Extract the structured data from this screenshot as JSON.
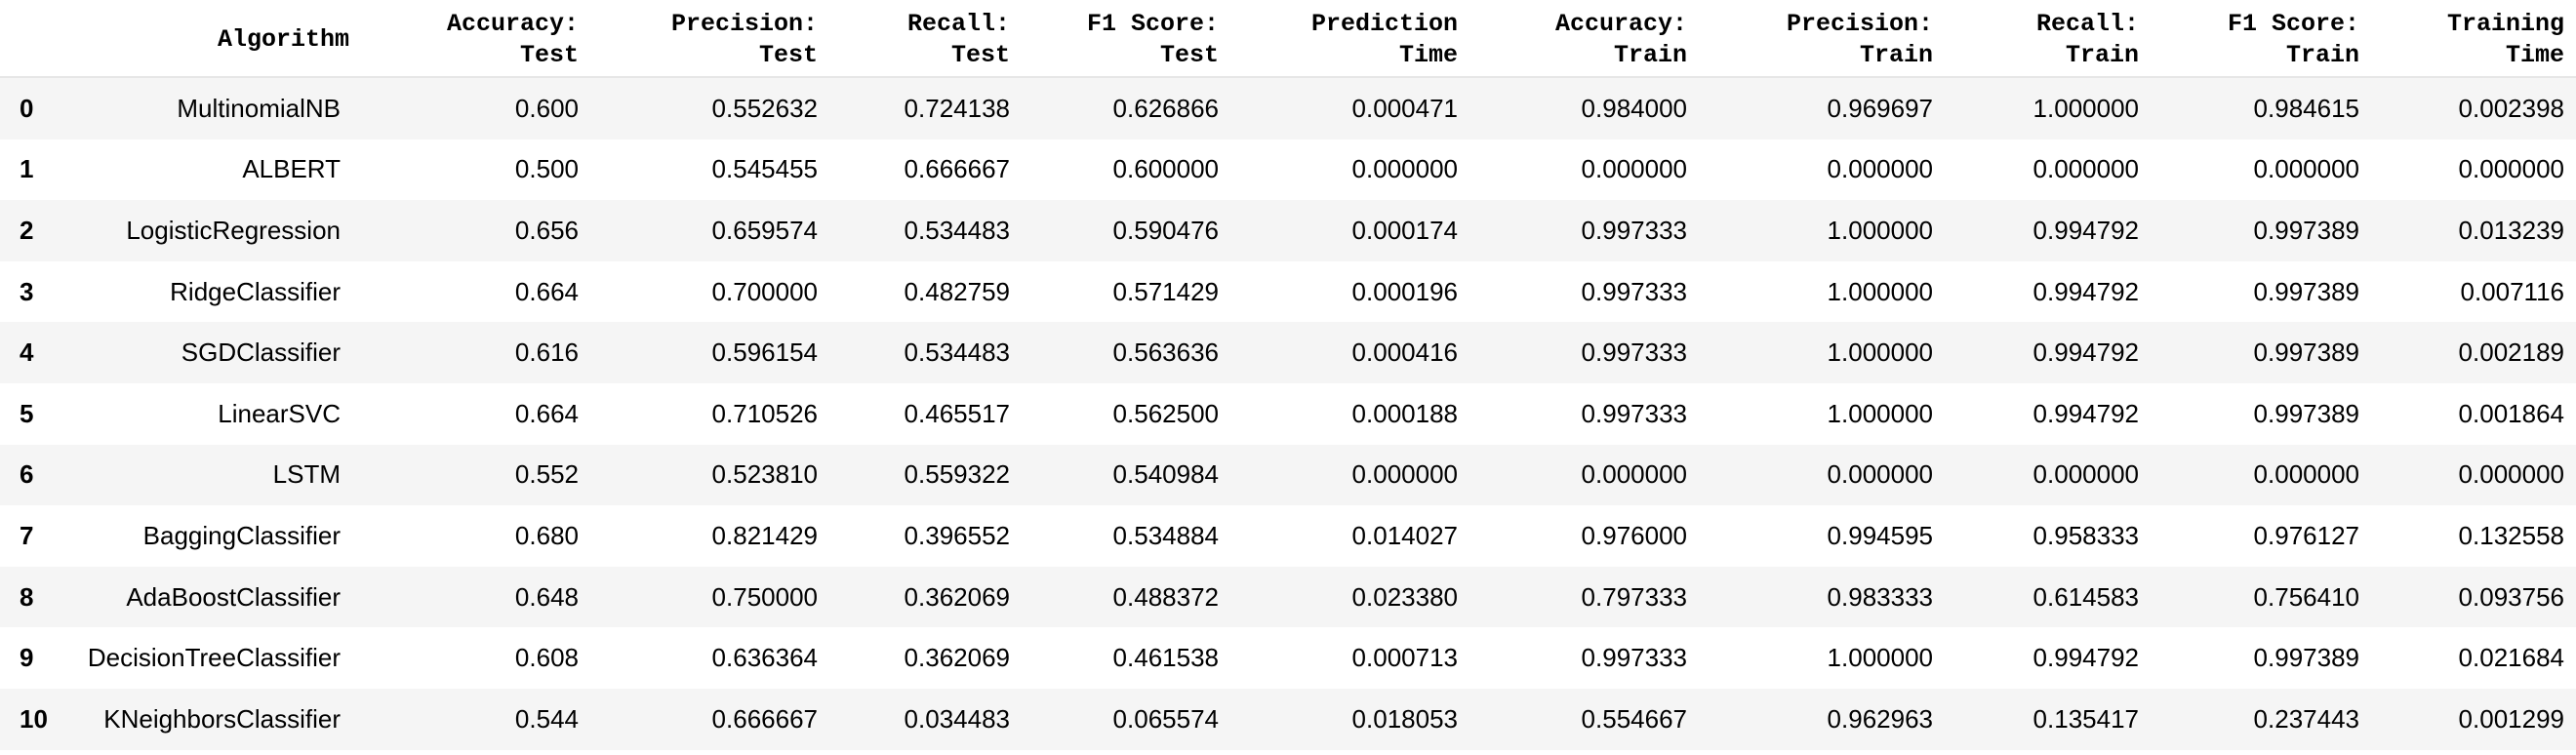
{
  "columns": [
    "",
    "Algorithm",
    "Accuracy:\nTest",
    "Precision:\nTest",
    "Recall:\nTest",
    "F1 Score:\nTest",
    "Prediction\nTime",
    "Accuracy:\nTrain",
    "Precision:\nTrain",
    "Recall:\nTrain",
    "F1 Score:\nTrain",
    "Training\nTime"
  ],
  "rows": [
    [
      "0",
      "MultinomialNB",
      "0.600",
      "0.552632",
      "0.724138",
      "0.626866",
      "0.000471",
      "0.984000",
      "0.969697",
      "1.000000",
      "0.984615",
      "0.002398"
    ],
    [
      "1",
      "ALBERT",
      "0.500",
      "0.545455",
      "0.666667",
      "0.600000",
      "0.000000",
      "0.000000",
      "0.000000",
      "0.000000",
      "0.000000",
      "0.000000"
    ],
    [
      "2",
      "LogisticRegression",
      "0.656",
      "0.659574",
      "0.534483",
      "0.590476",
      "0.000174",
      "0.997333",
      "1.000000",
      "0.994792",
      "0.997389",
      "0.013239"
    ],
    [
      "3",
      "RidgeClassifier",
      "0.664",
      "0.700000",
      "0.482759",
      "0.571429",
      "0.000196",
      "0.997333",
      "1.000000",
      "0.994792",
      "0.997389",
      "0.007116"
    ],
    [
      "4",
      "SGDClassifier",
      "0.616",
      "0.596154",
      "0.534483",
      "0.563636",
      "0.000416",
      "0.997333",
      "1.000000",
      "0.994792",
      "0.997389",
      "0.002189"
    ],
    [
      "5",
      "LinearSVC",
      "0.664",
      "0.710526",
      "0.465517",
      "0.562500",
      "0.000188",
      "0.997333",
      "1.000000",
      "0.994792",
      "0.997389",
      "0.001864"
    ],
    [
      "6",
      "LSTM",
      "0.552",
      "0.523810",
      "0.559322",
      "0.540984",
      "0.000000",
      "0.000000",
      "0.000000",
      "0.000000",
      "0.000000",
      "0.000000"
    ],
    [
      "7",
      "BaggingClassifier",
      "0.680",
      "0.821429",
      "0.396552",
      "0.534884",
      "0.014027",
      "0.976000",
      "0.994595",
      "0.958333",
      "0.976127",
      "0.132558"
    ],
    [
      "8",
      "AdaBoostClassifier",
      "0.648",
      "0.750000",
      "0.362069",
      "0.488372",
      "0.023380",
      "0.797333",
      "0.983333",
      "0.614583",
      "0.756410",
      "0.093756"
    ],
    [
      "9",
      "DecisionTreeClassifier",
      "0.608",
      "0.636364",
      "0.362069",
      "0.461538",
      "0.000713",
      "0.997333",
      "1.000000",
      "0.994792",
      "0.997389",
      "0.021684"
    ],
    [
      "10",
      "KNeighborsClassifier",
      "0.544",
      "0.666667",
      "0.034483",
      "0.065574",
      "0.018053",
      "0.554667",
      "0.962963",
      "0.135417",
      "0.237443",
      "0.001299"
    ]
  ]
}
